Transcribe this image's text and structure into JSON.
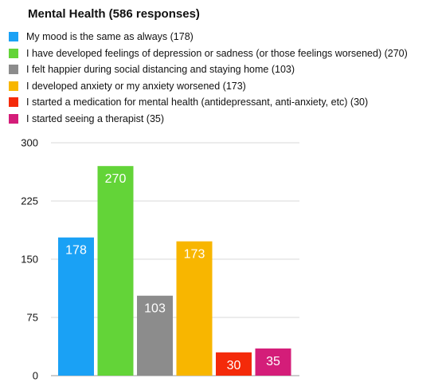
{
  "chart_data": {
    "type": "bar",
    "title": "Mental Health (586 responses)",
    "categories": [
      "My mood is the same as always",
      "I have developed feelings of depression or sadness (or those feelings worsened)",
      "I felt happier during social distancing and staying home",
      "I developed anxiety or my anxiety worsened",
      "I started a medication for mental health (antidepressant, anti-anxiety, etc)",
      "I started seeing a therapist"
    ],
    "values": [
      178,
      270,
      103,
      173,
      30,
      35
    ],
    "colors": [
      "#1aa1f5",
      "#63d438",
      "#8c8c8c",
      "#f8b600",
      "#f42a0a",
      "#d41d79"
    ],
    "legend": [
      "My mood is the same as always (178)",
      "I have developed feelings of depression or sadness (or those feelings worsened) (270)",
      "I felt happier during social distancing and staying home (103)",
      "I developed anxiety or my anxiety worsened (173)",
      "I started a medication for mental health (antidepressant, anti-anxiety, etc) (30)",
      "I started seeing a therapist (35)"
    ],
    "legend_position": "top-left",
    "ylim": [
      0,
      300
    ],
    "yticks": [
      0,
      75,
      150,
      225,
      300
    ],
    "grid": true,
    "xlabel": "",
    "ylabel": ""
  }
}
